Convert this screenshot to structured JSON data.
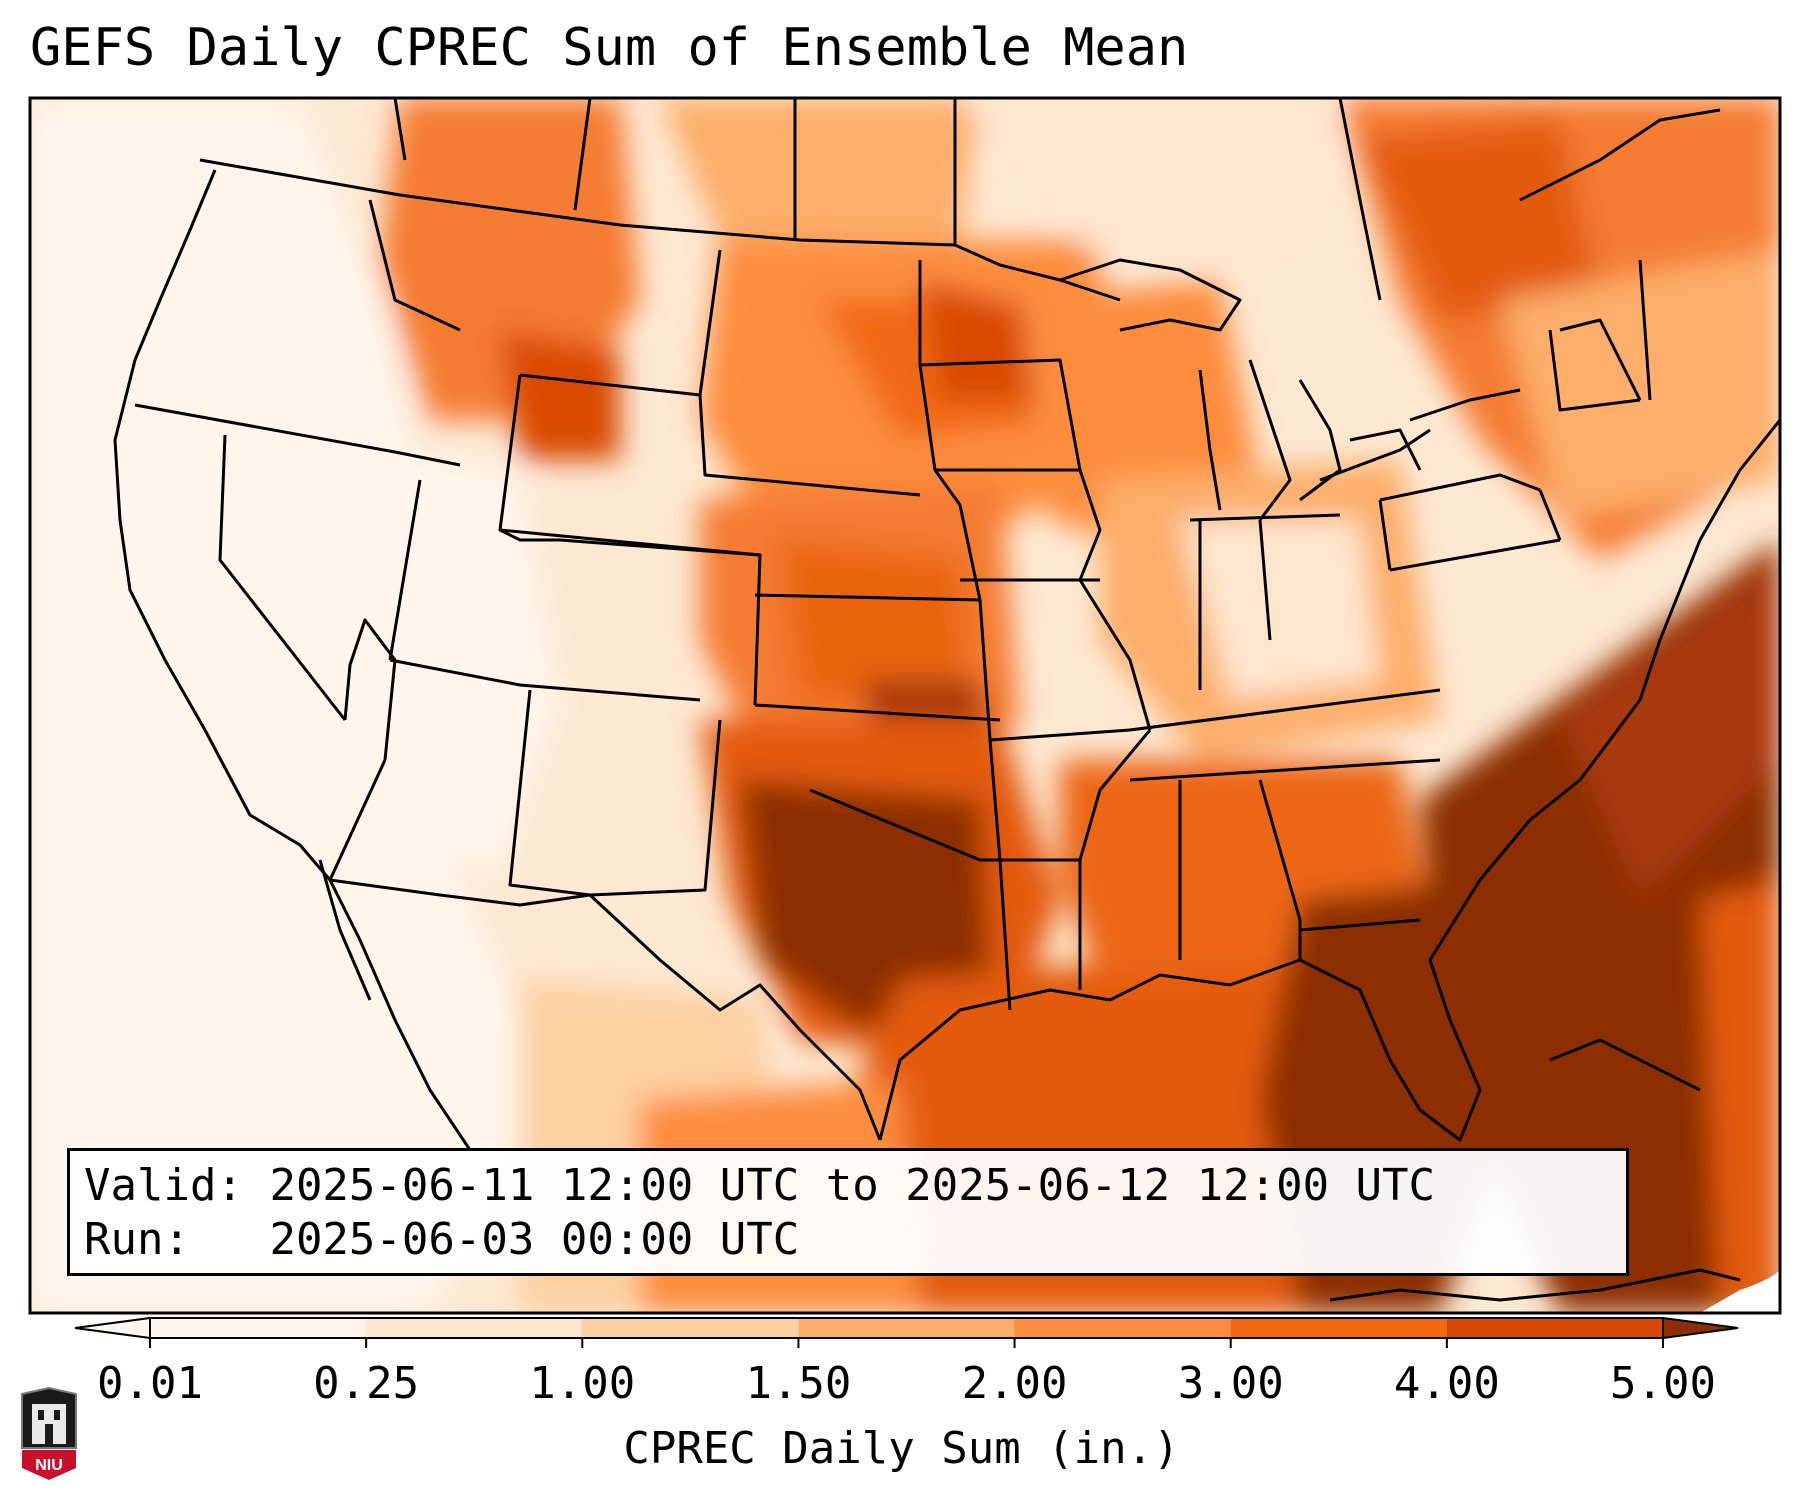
{
  "title": "GEFS Daily CPREC Sum of Ensemble Mean",
  "info": {
    "valid_label": "Valid:",
    "valid_value": "2025-06-11 12:00 UTC to 2025-06-12 12:00 UTC",
    "run_label": "Run:",
    "run_value": "2025-06-03 00:00 UTC"
  },
  "colorbar": {
    "label": "CPREC Daily Sum (in.)",
    "ticks": [
      "0.01",
      "0.25",
      "1.00",
      "1.50",
      "2.00",
      "3.00",
      "4.00",
      "5.00"
    ],
    "colors": [
      "#fff5eb",
      "#fee6ce",
      "#fdd0a2",
      "#fdae6b",
      "#fd8d3c",
      "#f16913",
      "#d94801",
      "#8c2d04"
    ],
    "extend": "both"
  },
  "logo": {
    "text": "NIU",
    "color": "#c8102e"
  },
  "colors": {
    "border": "#000000",
    "background": "#ffffff"
  }
}
